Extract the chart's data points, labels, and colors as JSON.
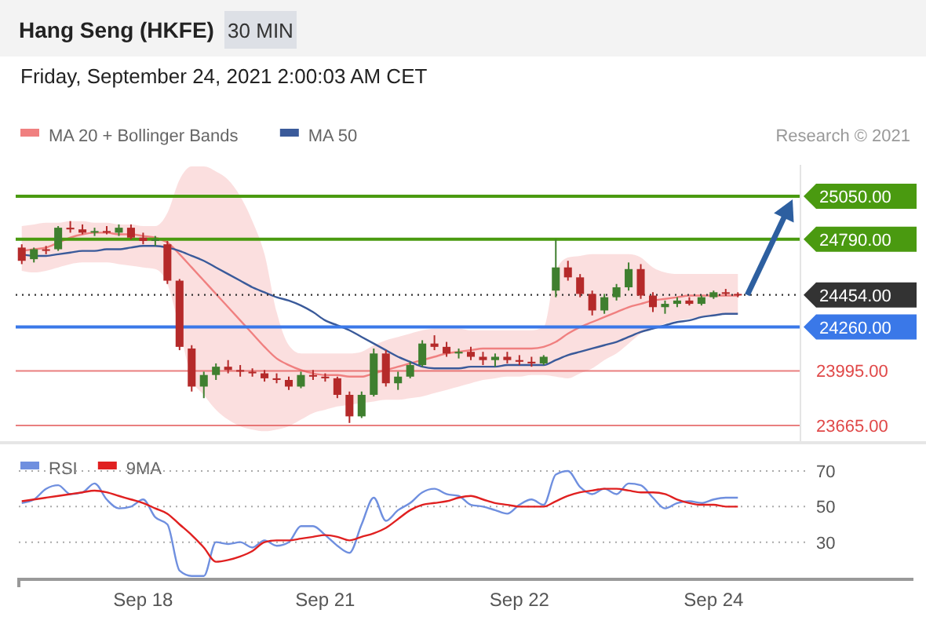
{
  "chart_data": [
    {
      "type": "candlestick",
      "title": "Hang Seng (HKFE)",
      "subtitle": "Friday, September 24, 2021 2:00:03 AM CET",
      "annotations": [
        "30 MIN",
        "Research © 2021"
      ],
      "categories": [
        null,
        null,
        null,
        null,
        null,
        null,
        null,
        null,
        null,
        null,
        null,
        null,
        null,
        null,
        null,
        null,
        null,
        null,
        null,
        null,
        null,
        null,
        null,
        null,
        null,
        null,
        null,
        null,
        null,
        null,
        null,
        null,
        null,
        null,
        null,
        null,
        null,
        null,
        null,
        null,
        null,
        null,
        null,
        null,
        null,
        null,
        null,
        null,
        null,
        null,
        null,
        null,
        null,
        null,
        null,
        null,
        null,
        null,
        null,
        null
      ],
      "ylim": [
        23570,
        25240
      ],
      "yticks": [
        {
          "value": 25050,
          "label": "25050.00"
        },
        {
          "value": 24790,
          "label": "24790.00"
        },
        {
          "value": 24454,
          "label": "24454.00"
        },
        {
          "value": 24260,
          "label": "24260.00"
        },
        {
          "value": 23995,
          "label": "23995.00"
        },
        {
          "value": 23665,
          "label": "23665.00"
        }
      ],
      "tick_labels": "y",
      "legend": "top left",
      "ohlc": [
        [
          24740,
          24760,
          24640,
          24660
        ],
        [
          24670,
          24740,
          24650,
          24730
        ],
        [
          24730,
          24750,
          24700,
          24720
        ],
        [
          24730,
          24870,
          24720,
          24860
        ],
        [
          24860,
          24900,
          24830,
          24850
        ],
        [
          24850,
          24880,
          24820,
          24830
        ],
        [
          24830,
          24860,
          24810,
          24840
        ],
        [
          24840,
          24870,
          24820,
          24830
        ],
        [
          24830,
          24880,
          24810,
          24860
        ],
        [
          24860,
          24880,
          24790,
          24800
        ],
        [
          24800,
          24830,
          24760,
          24780
        ],
        [
          24780,
          24810,
          24750,
          24790
        ],
        [
          24760,
          24780,
          24520,
          24540
        ],
        [
          24540,
          24550,
          24120,
          24140
        ],
        [
          24130,
          24150,
          23870,
          23900
        ],
        [
          23900,
          23990,
          23830,
          23970
        ],
        [
          23970,
          24040,
          23940,
          24020
        ],
        [
          24020,
          24060,
          23980,
          24000
        ],
        [
          24000,
          24030,
          23960,
          23990
        ],
        [
          23990,
          24010,
          23960,
          23980
        ],
        [
          23980,
          24000,
          23930,
          23950
        ],
        [
          23950,
          23980,
          23920,
          23940
        ],
        [
          23940,
          23960,
          23880,
          23900
        ],
        [
          23900,
          23990,
          23890,
          23970
        ],
        [
          23970,
          24000,
          23940,
          23960
        ],
        [
          23960,
          23980,
          23930,
          23950
        ],
        [
          23950,
          23960,
          23830,
          23850
        ],
        [
          23850,
          23870,
          23680,
          23720
        ],
        [
          23720,
          23870,
          23710,
          23850
        ],
        [
          23850,
          24130,
          23840,
          24100
        ],
        [
          24100,
          24120,
          23900,
          23920
        ],
        [
          23920,
          23990,
          23880,
          23960
        ],
        [
          23960,
          24050,
          23950,
          24030
        ],
        [
          24030,
          24180,
          24020,
          24160
        ],
        [
          24160,
          24210,
          24120,
          24140
        ],
        [
          24140,
          24170,
          24080,
          24100
        ],
        [
          24100,
          24130,
          24070,
          24110
        ],
        [
          24110,
          24140,
          24060,
          24080
        ],
        [
          24080,
          24110,
          24030,
          24060
        ],
        [
          24060,
          24100,
          24020,
          24080
        ],
        [
          24080,
          24110,
          24040,
          24060
        ],
        [
          24060,
          24090,
          24030,
          24050
        ],
        [
          24050,
          24080,
          24020,
          24040
        ],
        [
          24040,
          24090,
          24030,
          24080
        ],
        [
          24480,
          24790,
          24440,
          24620
        ],
        [
          24620,
          24660,
          24540,
          24560
        ],
        [
          24560,
          24580,
          24440,
          24460
        ],
        [
          24460,
          24480,
          24330,
          24360
        ],
        [
          24360,
          24460,
          24340,
          24440
        ],
        [
          24440,
          24520,
          24420,
          24500
        ],
        [
          24500,
          24650,
          24480,
          24610
        ],
        [
          24610,
          24640,
          24430,
          24450
        ],
        [
          24450,
          24470,
          24350,
          24380
        ],
        [
          24380,
          24420,
          24340,
          24400
        ],
        [
          24400,
          24440,
          24380,
          24420
        ],
        [
          24420,
          24440,
          24390,
          24400
        ],
        [
          24400,
          24450,
          24390,
          24440
        ],
        [
          24440,
          24480,
          24430,
          24470
        ],
        [
          24470,
          24490,
          24450,
          24460
        ],
        [
          24460,
          24470,
          24440,
          24454
        ]
      ],
      "colors": [
        "#b52a2a",
        "#3f7f2f",
        "#b52a2a",
        "#3f7f2f",
        "#b52a2a",
        "#b52a2a",
        "#3f7f2f",
        "#b52a2a",
        "#3f7f2f",
        "#b52a2a",
        "#b52a2a",
        "#3f7f2f",
        "#b52a2a",
        "#b52a2a",
        "#b52a2a",
        "#3f7f2f",
        "#3f7f2f",
        "#b52a2a",
        "#b52a2a",
        "#b52a2a",
        "#b52a2a",
        "#b52a2a",
        "#b52a2a",
        "#3f7f2f",
        "#b52a2a",
        "#b52a2a",
        "#b52a2a",
        "#b52a2a",
        "#3f7f2f",
        "#3f7f2f",
        "#b52a2a",
        "#3f7f2f",
        "#3f7f2f",
        "#3f7f2f",
        "#b52a2a",
        "#b52a2a",
        "#3f7f2f",
        "#b52a2a",
        "#b52a2a",
        "#3f7f2f",
        "#b52a2a",
        "#b52a2a",
        "#b52a2a",
        "#3f7f2f",
        "#3f7f2f",
        "#b52a2a",
        "#b52a2a",
        "#b52a2a",
        "#3f7f2f",
        "#3f7f2f",
        "#3f7f2f",
        "#b52a2a",
        "#b52a2a",
        "#3f7f2f",
        "#3f7f2f",
        "#b52a2a",
        "#3f7f2f",
        "#3f7f2f",
        "#b52a2a",
        "#b52a2a"
      ],
      "series": [
        {
          "type": "line",
          "name": "MA 20 + Bollinger Bands",
          "color": "#f08080",
          "values": [
            24720,
            24730,
            24740,
            24770,
            24800,
            24820,
            24830,
            24830,
            24820,
            24820,
            24810,
            24800,
            24770,
            24700,
            24620,
            24540,
            24460,
            24380,
            24300,
            24220,
            24140,
            24070,
            24030,
            24000,
            23980,
            23970,
            23970,
            23960,
            23960,
            23980,
            24000,
            24020,
            24040,
            24060,
            24080,
            24100,
            24110,
            24120,
            24130,
            24130,
            24130,
            24130,
            24130,
            24140,
            24170,
            24220,
            24260,
            24290,
            24320,
            24350,
            24380,
            24400,
            24420,
            24430,
            24440,
            24450,
            24450,
            24450,
            24450,
            24450
          ],
          "upper": [
            24870,
            24880,
            24890,
            24890,
            24900,
            24900,
            24890,
            24890,
            24880,
            24880,
            24870,
            24870,
            24950,
            25150,
            25230,
            25230,
            25200,
            25150,
            25050,
            24900,
            24700,
            24350,
            24150,
            24100,
            24100,
            24100,
            24100,
            24100,
            24110,
            24150,
            24180,
            24200,
            24220,
            24240,
            24250,
            24250,
            24250,
            24240,
            24240,
            24240,
            24240,
            24240,
            24240,
            24260,
            24600,
            24680,
            24690,
            24700,
            24700,
            24700,
            24700,
            24680,
            24620,
            24590,
            24580,
            24580,
            24580,
            24580,
            24580,
            24580
          ],
          "lower": [
            24600,
            24590,
            24600,
            24620,
            24640,
            24650,
            24650,
            24650,
            24640,
            24630,
            24620,
            24610,
            24520,
            24250,
            23950,
            23850,
            23760,
            23700,
            23660,
            23640,
            23630,
            23640,
            23660,
            23700,
            23740,
            23760,
            23780,
            23790,
            23800,
            23810,
            23820,
            23820,
            23830,
            23840,
            23860,
            23880,
            23900,
            23920,
            23940,
            23950,
            23960,
            23960,
            23970,
            23970,
            23960,
            23950,
            23980,
            24010,
            24060,
            24100,
            24160,
            24220,
            24250,
            24280,
            24300,
            24310,
            24320,
            24330,
            24340,
            24340
          ]
        },
        {
          "type": "line",
          "name": "MA 50",
          "color": "#3a5a9a",
          "values": [
            24700,
            24690,
            24690,
            24700,
            24710,
            24720,
            24720,
            24730,
            24730,
            24740,
            24750,
            24750,
            24740,
            24720,
            24690,
            24660,
            24620,
            24580,
            24540,
            24500,
            24470,
            24440,
            24420,
            24390,
            24350,
            24300,
            24270,
            24240,
            24200,
            24160,
            24120,
            24080,
            24050,
            24020,
            24010,
            24010,
            24010,
            24020,
            24020,
            24020,
            24030,
            24030,
            24030,
            24030,
            24060,
            24090,
            24110,
            24130,
            24150,
            24170,
            24200,
            24230,
            24250,
            24270,
            24290,
            24300,
            24320,
            24330,
            24340,
            24340
          ]
        }
      ],
      "ref_lines": [
        {
          "axis": "y",
          "value": 25050,
          "color": "#4a9a10"
        },
        {
          "axis": "y",
          "value": 24790,
          "color": "#4a9a10"
        },
        {
          "axis": "y",
          "value": 24454,
          "color": "#333333",
          "line_style": "dotted"
        },
        {
          "axis": "y",
          "value": 24260,
          "color": "#3a78e8"
        },
        {
          "axis": "y",
          "value": 23995,
          "color": "#e04848"
        },
        {
          "axis": "y",
          "value": 23665,
          "color": "#e04848"
        }
      ]
    },
    {
      "type": "line",
      "categories": [
        null,
        null,
        null,
        null,
        null,
        null,
        null,
        null,
        null,
        null,
        "Sep 18",
        null,
        null,
        null,
        null,
        null,
        null,
        null,
        null,
        null,
        null,
        null,
        null,
        null,
        null,
        "Sep 21",
        null,
        null,
        null,
        null,
        null,
        null,
        null,
        null,
        null,
        null,
        null,
        null,
        null,
        null,
        null,
        "Sep 22",
        null,
        null,
        null,
        null,
        null,
        null,
        null,
        null,
        null,
        null,
        null,
        null,
        null,
        null,
        null,
        "Sep 24",
        null,
        null
      ],
      "ylim": [
        10,
        70
      ],
      "yticks": [
        30,
        50,
        70
      ],
      "grid": "y",
      "legend": "top left",
      "series": [
        {
          "name": "RSI",
          "color": "#6f8fdf",
          "values": [
            52,
            54,
            60,
            62,
            57,
            58,
            63,
            54,
            49,
            50,
            54,
            44,
            40,
            14,
            11,
            11,
            30,
            29,
            30,
            27,
            31,
            28,
            30,
            39,
            39,
            34,
            28,
            24,
            40,
            55,
            42,
            48,
            52,
            58,
            60,
            57,
            56,
            51,
            50,
            48,
            46,
            51,
            54,
            51,
            68,
            70,
            61,
            57,
            60,
            57,
            63,
            62,
            55,
            49,
            52,
            53,
            52,
            54,
            55,
            55
          ]
        },
        {
          "name": "9MA",
          "color": "#e02020",
          "values": [
            53,
            54,
            55,
            56,
            57,
            58,
            59,
            58,
            56,
            54,
            52,
            49,
            46,
            40,
            34,
            27,
            19,
            20,
            22,
            25,
            30,
            31,
            31,
            32,
            33,
            34,
            33,
            31,
            33,
            35,
            38,
            43,
            48,
            51,
            52,
            53,
            55,
            56,
            54,
            52,
            51,
            50,
            50,
            50,
            53,
            56,
            58,
            59,
            60,
            60,
            59,
            58,
            58,
            57,
            54,
            52,
            51,
            51,
            50,
            50
          ]
        }
      ]
    }
  ]
}
